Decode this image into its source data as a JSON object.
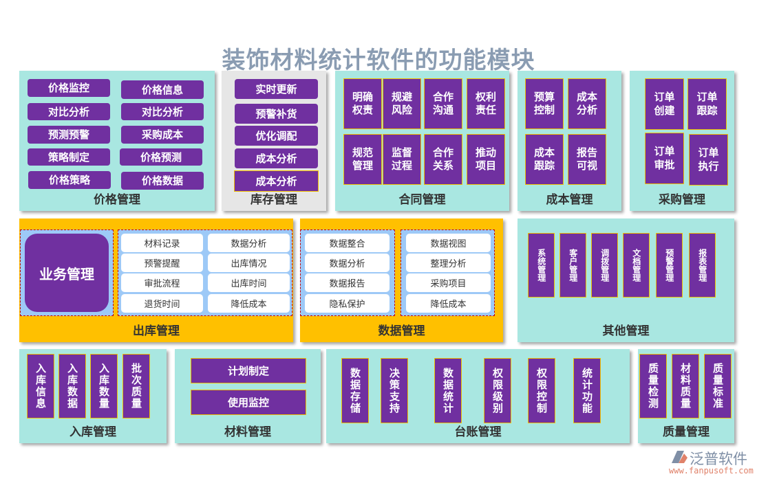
{
  "title": "装饰材料统计软件的功能模块",
  "colors": {
    "button": "#7030a0",
    "teal": "#a9e7e1",
    "orange": "#ffc000",
    "grey": "#e6e6e6",
    "cell_bg": "#9dc9f7"
  },
  "panels": {
    "price": {
      "label": "价格管理",
      "items": [
        "价格监控",
        "价格信息",
        "对比分析",
        "对比分析",
        "预测预警",
        "采购成本",
        "策略制定",
        "价格预测",
        "价格策略",
        "价格数据"
      ]
    },
    "inventory": {
      "label": "库存管理",
      "items": [
        "实时更新",
        "预警补货",
        "优化调配",
        "成本分析",
        "成本分析"
      ]
    },
    "contract": {
      "label": "合同管理",
      "items": [
        "明确权责",
        "规避风险",
        "合作沟通",
        "权利责任",
        "规范管理",
        "监督过程",
        "合作关系",
        "推动项目"
      ]
    },
    "cost": {
      "label": "成本管理",
      "items": [
        "预算控制",
        "成本分析",
        "成本跟踪",
        "报告可视"
      ]
    },
    "purchase": {
      "label": "采购管理",
      "items": [
        "订单创建",
        "订单跟踪",
        "订单审批",
        "订单执行"
      ]
    },
    "outbound": {
      "label": "出库管理",
      "feature": "业务管理",
      "items": [
        "材料记录",
        "数据分析",
        "预警提醒",
        "出库情况",
        "审批流程",
        "出库时间",
        "退货时间",
        "降低成本"
      ]
    },
    "data": {
      "label": "数据管理",
      "left_items": [
        "数据整合",
        "数据分析",
        "数据报告",
        "隐私保护"
      ],
      "right_items": [
        "数据视图",
        "整理分析",
        "采购项目",
        "降低成本"
      ]
    },
    "other": {
      "label": "其他管理",
      "items": [
        "系统管理",
        "客户管理",
        "调拨管理",
        "文档管理",
        "预警管理",
        "报表管理"
      ]
    },
    "inbound": {
      "label": "入库管理",
      "items": [
        "入库信息",
        "入库数据",
        "入库数量",
        "批次质量"
      ]
    },
    "material": {
      "label": "材料管理",
      "items": [
        "计划制定",
        "使用监控"
      ]
    },
    "ledger": {
      "label": "台账管理",
      "items": [
        "数据存储",
        "决策支持",
        "数据统计",
        "权限级别",
        "权限控制",
        "统计功能"
      ]
    },
    "quality": {
      "label": "质量管理",
      "items": [
        "质量检测",
        "材料质量",
        "质量标准"
      ]
    }
  },
  "logo": {
    "name": "泛普软件",
    "url": "www.fanpusoft.com"
  }
}
